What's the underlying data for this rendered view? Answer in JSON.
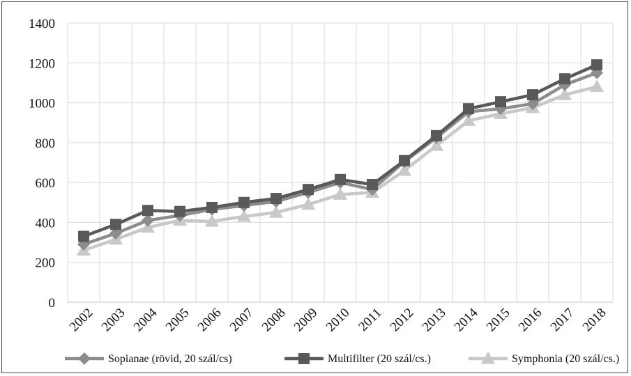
{
  "chart_data": {
    "type": "line",
    "categories": [
      "2002",
      "2003",
      "2004",
      "2005",
      "2006",
      "2007",
      "2008",
      "2009",
      "2010",
      "2011",
      "2012",
      "2013",
      "2014",
      "2015",
      "2016",
      "2017",
      "2018"
    ],
    "ylim": [
      0,
      1400
    ],
    "yticks": [
      0,
      200,
      400,
      600,
      800,
      1000,
      1200,
      1400
    ],
    "grid": true,
    "legend_position": "bottom",
    "series": [
      {
        "name": "Sopianae (rövid, 20 szál/cs)",
        "color": "#8c8c8c",
        "marker": "diamond",
        "values": [
          290,
          345,
          410,
          435,
          465,
          485,
          505,
          550,
          600,
          565,
          705,
          825,
          955,
          970,
          995,
          1090,
          1150
        ]
      },
      {
        "name": "Multifilter (20 szál/cs.)",
        "color": "#595959",
        "marker": "square",
        "values": [
          330,
          390,
          460,
          455,
          475,
          500,
          520,
          565,
          615,
          590,
          710,
          835,
          970,
          1005,
          1040,
          1120,
          1190
        ]
      },
      {
        "name": "Symphonia (20 szál/cs.)",
        "color": "#c8c8c8",
        "marker": "triangle",
        "values": [
          260,
          315,
          375,
          410,
          405,
          430,
          450,
          490,
          540,
          550,
          660,
          785,
          910,
          945,
          975,
          1040,
          1080
        ]
      }
    ]
  }
}
